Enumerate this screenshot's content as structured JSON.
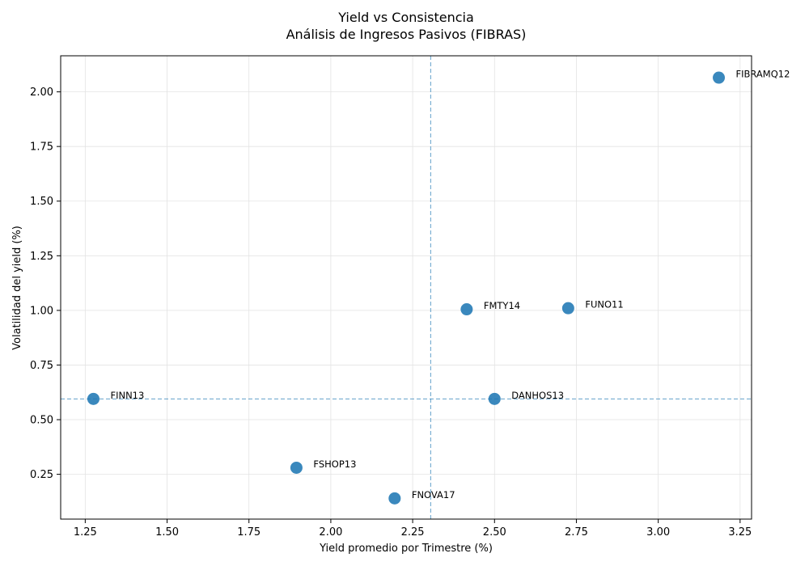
{
  "chart_data": {
    "type": "scatter",
    "title": "Yield vs Consistencia",
    "subtitle": "Análisis de Ingresos Pasivos (FIBRAS)",
    "xlabel": "Yield promedio por Trimestre (%)",
    "ylabel": "Volatilidad del yield (%)",
    "xlim": [
      1.175,
      3.285
    ],
    "ylim": [
      0.045,
      2.165
    ],
    "xticks": [
      "1.25",
      "1.50",
      "1.75",
      "2.00",
      "2.25",
      "2.50",
      "2.75",
      "3.00",
      "3.25"
    ],
    "yticks": [
      "0.25",
      "0.50",
      "0.75",
      "1.00",
      "1.25",
      "1.50",
      "1.75",
      "2.00"
    ],
    "grid": true,
    "point_color": "#1f77b4",
    "reference_lines": {
      "x": 2.305,
      "y": 0.595
    },
    "points": [
      {
        "label": "FIBRAMQ12",
        "x": 3.185,
        "y": 2.065
      },
      {
        "label": "FMTY14",
        "x": 2.415,
        "y": 1.005
      },
      {
        "label": "FUNO11",
        "x": 2.725,
        "y": 1.01
      },
      {
        "label": "FINN13",
        "x": 1.275,
        "y": 0.595
      },
      {
        "label": "DANHOS13",
        "x": 2.5,
        "y": 0.595
      },
      {
        "label": "FSHOP13",
        "x": 1.895,
        "y": 0.28
      },
      {
        "label": "FNOVA17",
        "x": 2.195,
        "y": 0.14
      }
    ]
  }
}
